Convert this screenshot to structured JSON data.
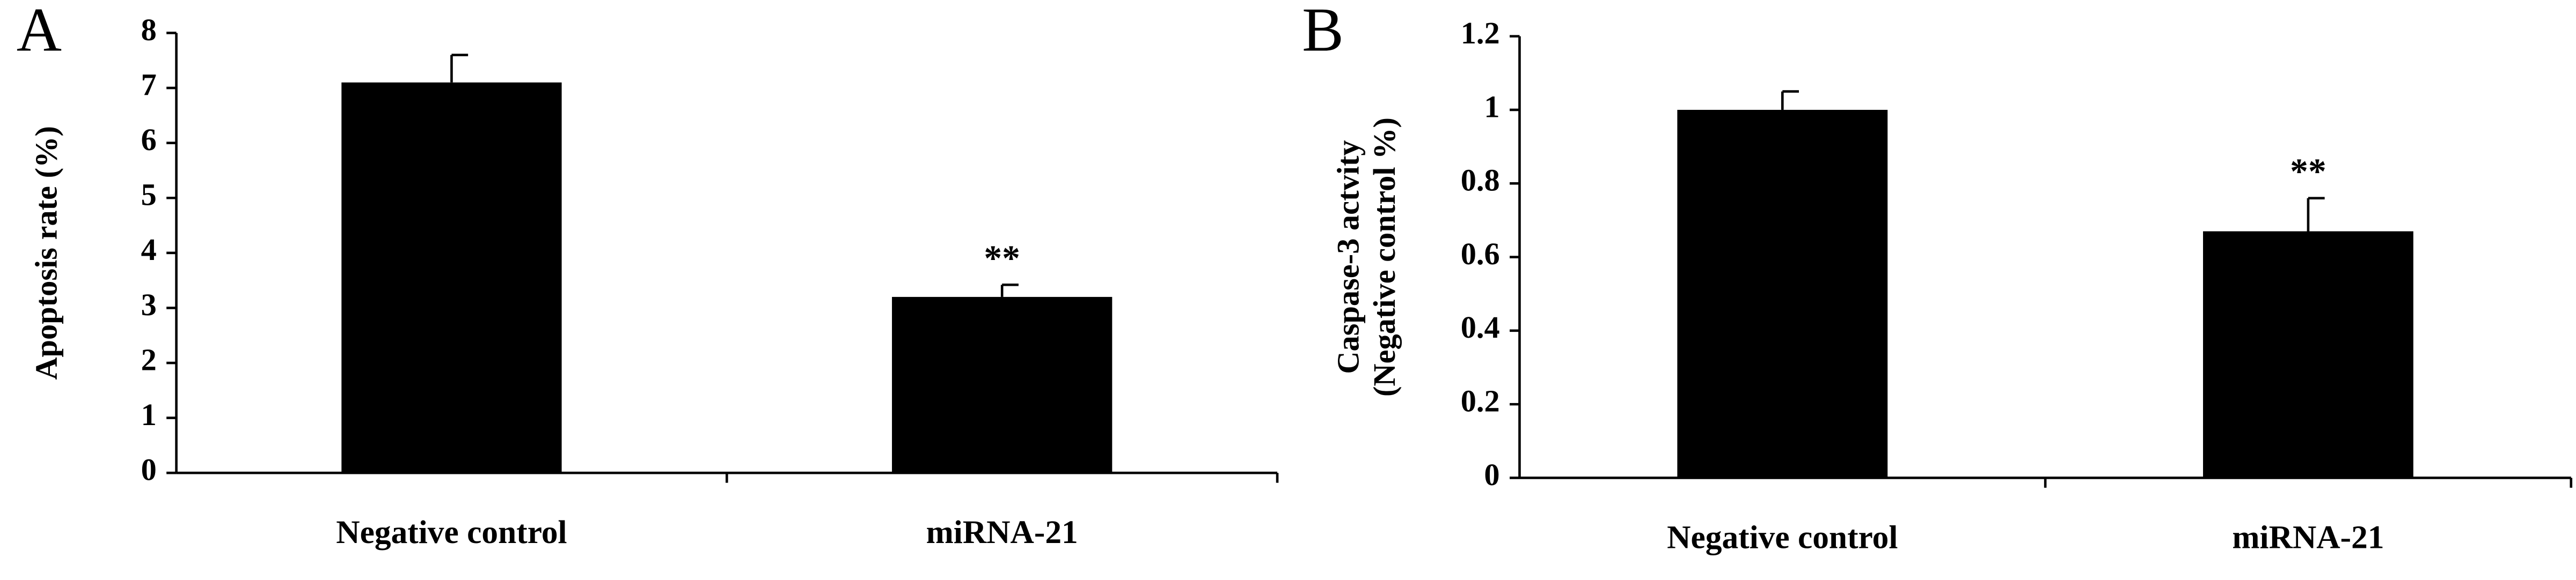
{
  "chart_data": [
    {
      "type": "bar",
      "panel": "A",
      "ylabel": [
        "Apoptosis rate (%)"
      ],
      "categories": [
        "Negative control",
        "miRNA-21"
      ],
      "values": [
        7.1,
        3.2
      ],
      "errors": [
        0.5,
        0.22
      ],
      "color": "#000000",
      "ylim": [
        0,
        8
      ],
      "yticks": [
        0,
        1,
        2,
        3,
        4,
        5,
        6,
        7,
        8
      ],
      "annotations": [
        {
          "text": "**",
          "category": "miRNA-21"
        }
      ]
    },
    {
      "type": "bar",
      "panel": "B",
      "ylabel": [
        "Caspase-3 actvity",
        "(Negative control %)"
      ],
      "categories": [
        "Negative control",
        "miRNA-21"
      ],
      "values": [
        1.0,
        0.67
      ],
      "errors": [
        0.05,
        0.09
      ],
      "color": "#000000",
      "ylim": [
        0,
        1.2
      ],
      "yticks": [
        0,
        0.2,
        0.4,
        0.6,
        0.8,
        1,
        1.2
      ],
      "annotations": [
        {
          "text": "**",
          "category": "miRNA-21"
        }
      ]
    }
  ]
}
